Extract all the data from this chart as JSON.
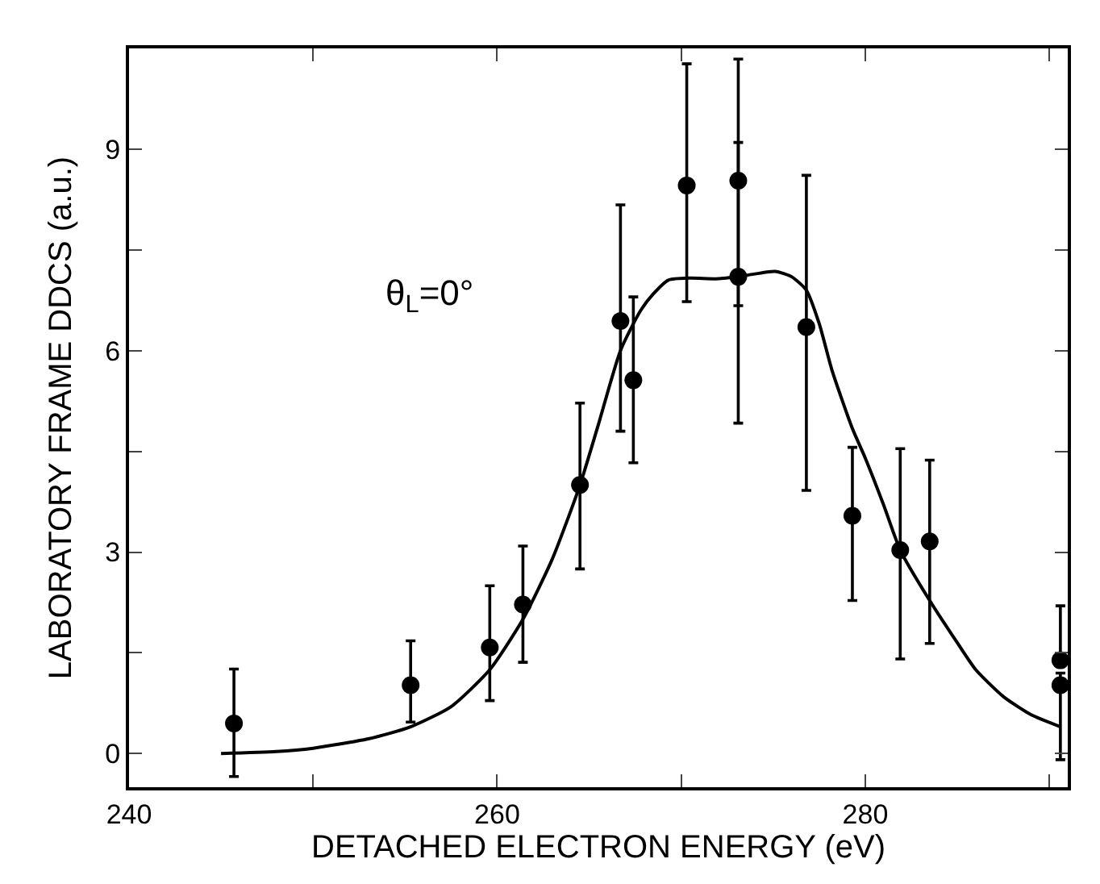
{
  "chart_data": {
    "type": "scatter",
    "xlabel": "DETACHED ELECTRON ENERGY (eV)",
    "ylabel": "LABORATORY FRAME DDCS (a.u.)",
    "xlim": [
      240,
      291
    ],
    "ylim": [
      -0.5,
      10.5
    ],
    "xticks": [
      240,
      {
        "value": 250,
        "label": null
      },
      260,
      {
        "value": 270,
        "label": null
      },
      280,
      {
        "value": 290,
        "label": null
      }
    ],
    "yticks": [
      0,
      {
        "value": 1.5,
        "label": null
      },
      3,
      {
        "value": 4.5,
        "label": null
      },
      6,
      {
        "value": 7.5,
        "label": null
      },
      9
    ],
    "marker": "circle",
    "annotations": [
      "θ$_{L}$=0°"
    ],
    "series": [
      {
        "color": "#000000",
        "x": [
          245.7,
          255.3,
          259.6,
          261.4,
          264.5,
          266.7,
          267.4,
          270.3,
          273.1,
          273.1,
          276.8,
          279.3,
          281.9,
          283.5,
          290.6,
          290.6
        ],
        "values": [
          0.45,
          1.02,
          1.58,
          2.22,
          4.0,
          6.44,
          5.56,
          8.46,
          8.53,
          7.1,
          6.35,
          3.54,
          3.03,
          3.16,
          1.39,
          1.02
        ],
        "errors": [
          [
            -0.34,
            1.26
          ],
          [
            0.47,
            1.68
          ],
          [
            0.79,
            2.5
          ],
          [
            1.36,
            3.09
          ],
          [
            2.75,
            5.22
          ],
          [
            4.8,
            8.17
          ],
          [
            4.33,
            6.8
          ],
          [
            6.73,
            10.27
          ],
          [
            6.67,
            10.34
          ],
          [
            4.92,
            9.1
          ],
          [
            3.92,
            8.61
          ],
          [
            2.28,
            4.56
          ],
          [
            1.41,
            4.54
          ],
          [
            1.64,
            4.37
          ],
          [
            1.39,
            2.2
          ],
          [
            -0.09,
            1.2
          ]
        ]
      },
      {
        "type": "line",
        "color": "#000000",
        "marker": "none",
        "line_style": "solid",
        "x": [
          245,
          248,
          250,
          253,
          255.3,
          257.5,
          259.6,
          261.4,
          263,
          264.5,
          265.5,
          266.7,
          267.8,
          268.5,
          269.3,
          270.5,
          272,
          273.5,
          275.1,
          276,
          276.8,
          277.5,
          278.2,
          279.3,
          280,
          281,
          281.9,
          283.5,
          285,
          286,
          287.5,
          289,
          290.6
        ],
        "values": [
          0,
          0.03,
          0.08,
          0.22,
          0.4,
          0.7,
          1.25,
          2.0,
          2.9,
          4.0,
          4.9,
          6.0,
          6.6,
          6.85,
          7.05,
          7.08,
          7.07,
          7.12,
          7.18,
          7.1,
          6.9,
          6.4,
          5.7,
          4.84,
          4.4,
          3.7,
          3.03,
          2.28,
          1.65,
          1.25,
          0.85,
          0.58,
          0.4
        ]
      }
    ]
  }
}
